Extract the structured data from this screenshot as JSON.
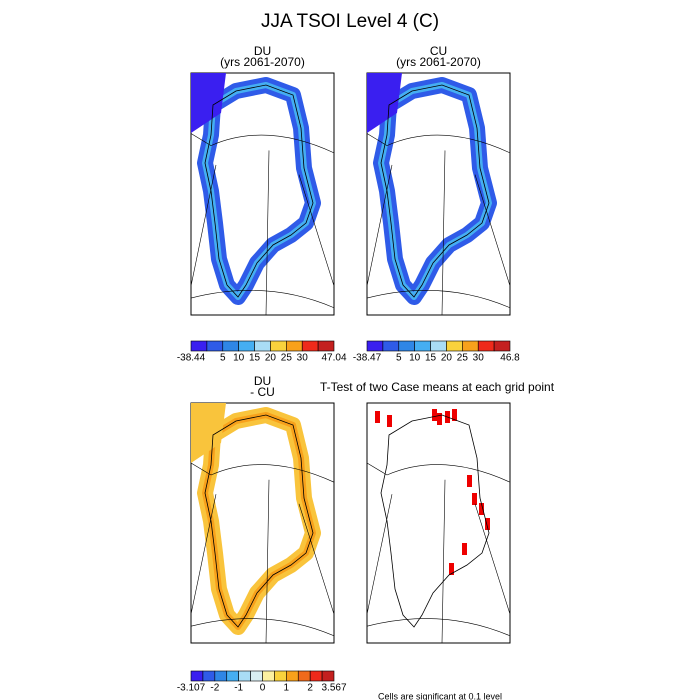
{
  "title": "JJA TSOI Level 4 (C)",
  "panels": [
    {
      "title": "DU",
      "subtitle": "(yrs 2061-2070)",
      "colorbar": {
        "colors": [
          "#3a1ff0",
          "#2f5be8",
          "#2f86e6",
          "#45aef2",
          "#a9dcf5",
          "#f9d23c",
          "#f8a11b",
          "#ef2a1b",
          "#c4201f"
        ],
        "labels": [
          "-38.44",
          "5",
          "10",
          "15",
          "20",
          "25",
          "30",
          "47.04"
        ]
      }
    },
    {
      "title": "CU",
      "subtitle": "(yrs 2061-2070)",
      "colorbar": {
        "colors": [
          "#3a1ff0",
          "#2f5be8",
          "#2f86e6",
          "#45aef2",
          "#a9dcf5",
          "#f9d23c",
          "#f8a11b",
          "#ef2a1b",
          "#c4201f"
        ],
        "labels": [
          "-38.47",
          "5",
          "10",
          "15",
          "20",
          "25",
          "30",
          "46.8"
        ]
      }
    },
    {
      "title": "DU",
      "subtitle": "- CU",
      "colorbar": {
        "colors": [
          "#3a1ff0",
          "#2f5be8",
          "#2f86e6",
          "#45aef2",
          "#a9dcf5",
          "#d9eef2",
          "#fbf0a0",
          "#f9d23c",
          "#f8a11b",
          "#f06a1b",
          "#ef2a1b",
          "#c4201f"
        ],
        "labels": [
          "-3.107",
          "-2",
          "-1",
          "0",
          "1",
          "2",
          "3.567"
        ]
      }
    },
    {
      "title": "T-Test of two Case means at each grid point",
      "footnote": "Cells are significant at 0.1 level"
    }
  ]
}
